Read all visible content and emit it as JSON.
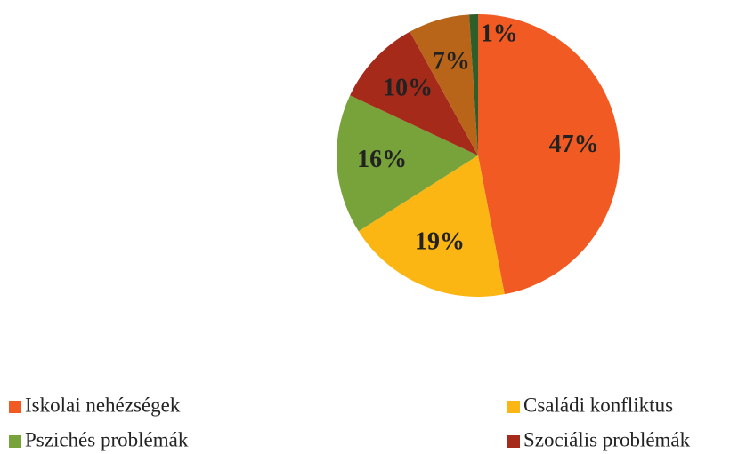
{
  "chart_data": {
    "type": "pie",
    "categories": [
      "Iskolai nehézségek",
      "Családi konfliktus",
      "Pszichés problémák",
      "Szociális problémák",
      null,
      null
    ],
    "values": [
      47,
      19,
      16,
      10,
      7,
      1
    ],
    "value_labels": [
      "47%",
      "19%",
      "16%",
      "10%",
      "7%",
      "1%"
    ],
    "colors": [
      "#f15a22",
      "#fbb613",
      "#77a33a",
      "#a52a1a",
      "#b8651a",
      "#2e5e2a"
    ],
    "legend": "bottom"
  }
}
